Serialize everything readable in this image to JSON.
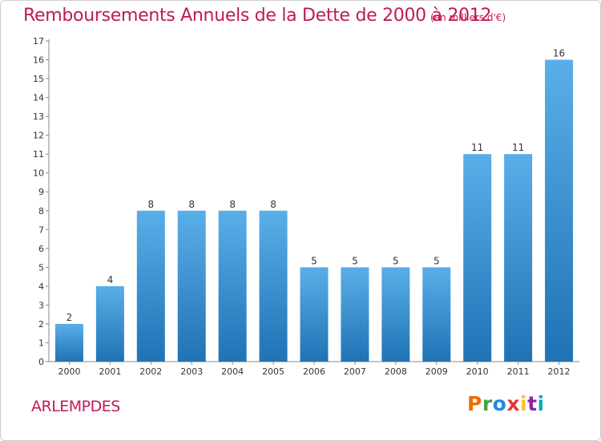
{
  "header": {
    "title": "Remboursements Annuels de la Dette de 2000 à 2012",
    "subtitle": "(en milliers d'€)"
  },
  "footer": {
    "commune": "ARLEMPDES",
    "brand": [
      "P",
      "r",
      "o",
      "x",
      "i",
      "t",
      "i"
    ],
    "brand_colors": [
      "#ef6c00",
      "#43a047",
      "#1e88e5",
      "#e53935",
      "#fbc02d",
      "#8e24aa",
      "#00acc1"
    ]
  },
  "colors": {
    "title": "#c2185b",
    "bar_top": "#5aaee8",
    "bar_bottom": "#1f73b5",
    "axis": "#888888"
  },
  "chart_data": {
    "type": "bar",
    "title": "Remboursements Annuels de la Dette de 2000 à 2012",
    "subtitle": "(en milliers d'€)",
    "xlabel": "",
    "ylabel": "",
    "categories": [
      "2000",
      "2001",
      "2002",
      "2003",
      "2004",
      "2005",
      "2006",
      "2007",
      "2008",
      "2009",
      "2010",
      "2011",
      "2012"
    ],
    "values": [
      2,
      4,
      8,
      8,
      8,
      8,
      5,
      5,
      5,
      5,
      11,
      11,
      16
    ],
    "data_labels": [
      "2",
      "4",
      "8",
      "8",
      "8",
      "8",
      "5",
      "5",
      "5",
      "5",
      "11",
      "11",
      "16"
    ],
    "yticks": [
      0,
      1,
      2,
      3,
      4,
      5,
      6,
      7,
      8,
      9,
      10,
      11,
      12,
      13,
      14,
      15,
      16,
      17
    ],
    "ylim": [
      0,
      17
    ],
    "grid": false,
    "legend": "none"
  }
}
